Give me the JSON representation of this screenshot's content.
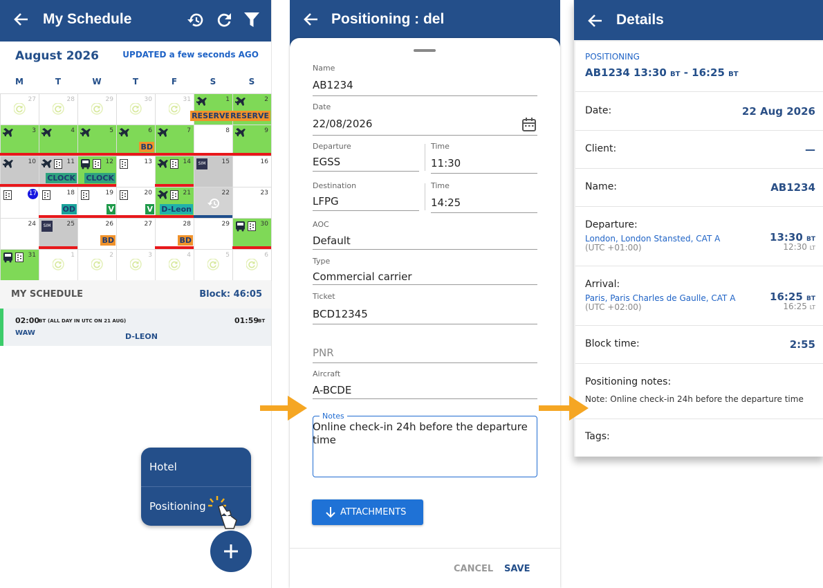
{
  "schedule": {
    "title": "My Schedule",
    "month": "August 2026",
    "updated": "UPDATED a few seconds AGO",
    "weekdays": [
      "M",
      "T",
      "W",
      "T",
      "F",
      "S",
      "S"
    ],
    "weeks": [
      [
        {
          "day": 27,
          "fg": "#bbbbbb"
        },
        {
          "day": 28,
          "fg": "#bbbbbb"
        },
        {
          "day": 29,
          "fg": "#bbbbbb"
        },
        {
          "day": 30,
          "fg": "#bbbbbb"
        },
        {
          "day": 31,
          "fg": "#bbbbbb"
        },
        {
          "day": 1,
          "bg": "#7fd957",
          "tag": {
            "text": "RESERVE",
            "color": "#f0922b",
            "fg": "#1e3a6e"
          }
        },
        {
          "day": 2,
          "bg": "#7fd957",
          "tag": {
            "text": "RESERVE",
            "color": "#f0922b",
            "fg": "#1e3a6e"
          }
        }
      ],
      [
        {
          "day": 3,
          "bg": "#7fd957",
          "bar": "#e8181b"
        },
        {
          "day": 4,
          "bg": "#7fd957",
          "bar": "#e8181b"
        },
        {
          "day": 5,
          "bg": "#7fd957",
          "bar": "#e8181b"
        },
        {
          "day": 6,
          "bg": "#7fd957",
          "bar": "#e8181b",
          "tag": {
            "text": "BD",
            "color": "#f0922b",
            "fg": "#1e3a6e"
          }
        },
        {
          "day": 7,
          "bg": "#7fd957",
          "bar": "#e8181b"
        },
        {
          "day": 8,
          "bar": "#e8181b"
        },
        {
          "day": 9,
          "bg": "#7fd957",
          "bar": "#e8181b"
        }
      ],
      [
        {
          "day": 10,
          "bg": "#c9c9c9",
          "bar": "#e8181b"
        },
        {
          "day": 11,
          "bg": "#c9c9c9",
          "bar": "#e8181b",
          "tag": {
            "text": "CLOCK",
            "color": "#2ea37f",
            "fg": "#1e3a6e"
          }
        },
        {
          "day": 12,
          "bg": "#7fd957",
          "bar": "#e8181b",
          "tag": {
            "text": "CLOCK",
            "color": "#2ea37f",
            "fg": "#1e3a6e"
          }
        },
        {
          "day": 13
        },
        {
          "day": 14,
          "bg": "#7fd957",
          "bar": "#e8181b"
        },
        {
          "day": 15,
          "bg": "#c9c9c9",
          "badge": "SIM"
        },
        {
          "day": 16
        }
      ],
      [
        {
          "day": 17,
          "dayBg": "#1515e0"
        },
        {
          "day": 18,
          "bar": "#e8181b",
          "tag": {
            "text": "OD",
            "color": "#1aa39a",
            "fg": "#1e3a6e"
          }
        },
        {
          "day": 19,
          "bar": "#e8181b",
          "tag": {
            "text": "V",
            "color": "#1f9a4a",
            "fg": "#ffffff"
          }
        },
        {
          "day": 20,
          "bar": "#e8181b",
          "tag": {
            "text": "V",
            "color": "#1f9a4a",
            "fg": "#ffffff"
          }
        },
        {
          "day": 21,
          "bg": "#7fd957",
          "bar": "#e8181b",
          "tag": {
            "text": "D-Leon",
            "color": "#20b2aa",
            "fg": "#1e3a6e"
          }
        },
        {
          "day": 22,
          "bg": "#d3d3d3",
          "bar": "#1f4e8c"
        },
        {
          "day": 23
        }
      ],
      [
        {
          "day": 24
        },
        {
          "day": 25,
          "bg": "#c9c9c9",
          "bar": "#e8181b",
          "badge": "SIM"
        },
        {
          "day": 26,
          "tag": {
            "text": "BD",
            "color": "#f0922b",
            "fg": "#1e3a6e"
          }
        },
        {
          "day": 27
        },
        {
          "day": 28,
          "bar": "#e8181b",
          "tag": {
            "text": "BD",
            "color": "#f0922b",
            "fg": "#1e3a6e"
          }
        },
        {
          "day": 29
        },
        {
          "day": 30,
          "bg": "#7fd957",
          "bar": "#e8181b"
        }
      ],
      [
        {
          "day": 31,
          "bg": "#7fd957"
        },
        {
          "day": 1,
          "fg": "#bbbbbb"
        },
        {
          "day": 2,
          "fg": "#bbbbbb"
        },
        {
          "day": 3,
          "fg": "#bbbbbb"
        },
        {
          "day": 4,
          "fg": "#bbbbbb"
        },
        {
          "day": 5,
          "fg": "#bbbbbb"
        },
        {
          "day": 6,
          "fg": "#bbbbbb"
        }
      ]
    ],
    "section": "MY SCHEDULE",
    "block": "Block: 46:05",
    "event": {
      "start": "02:00",
      "start_unit": "BT",
      "note": "(ALL DAY IN UTC ON 21 AUG)",
      "end": "01:59",
      "end_unit": "BT",
      "from": "WAW",
      "aircraft": "D-LEON"
    },
    "menu": [
      "Hotel",
      "Positioning"
    ]
  },
  "form": {
    "title": "Positioning : del",
    "fields": [
      {
        "label": "Name",
        "value": "AB1234"
      },
      {
        "label": "Date",
        "value": "22/08/2026"
      },
      {
        "label": "Departure",
        "value": "EGSS"
      },
      {
        "label": "Time",
        "value": "11:30"
      },
      {
        "label": "Destination",
        "value": "LFPG"
      },
      {
        "label": "Time",
        "value": "14:25"
      },
      {
        "label": "AOC",
        "value": "Default"
      },
      {
        "label": "Type",
        "value": "Commercial carrier"
      },
      {
        "label": "Ticket",
        "value": "BCD12345"
      },
      {
        "placeholder": "PNR"
      },
      {
        "label": "Aircraft",
        "value": "A-BCDE"
      }
    ],
    "notes": {
      "label": "Notes",
      "value": "Online check-in 24h before the departure time"
    },
    "attachments": "ATTACHMENTS",
    "cancel": "CANCEL",
    "save": "SAVE"
  },
  "details": {
    "title": "Details",
    "kind": "POSITIONING",
    "summary": [
      "AB1234 13:30",
      "BT",
      "- 16:25",
      "BT"
    ],
    "date": {
      "label": "Date:",
      "value": "22 Aug 2026"
    },
    "client": {
      "label": "Client:",
      "value": "—"
    },
    "name": {
      "label": "Name:",
      "value": "AB1234"
    },
    "departure": {
      "label": "Departure:",
      "place": "London, London Stansted, CAT A",
      "utc": "(UTC +01:00)",
      "bt": "13:30",
      "bt_unit": "BT",
      "lt": "12:30",
      "lt_unit": "LT"
    },
    "arrival": {
      "label": "Arrival:",
      "place": "Paris, Paris Charles de Gaulle, CAT A",
      "utc": "(UTC +02:00)",
      "bt": "16:25",
      "bt_unit": "BT",
      "lt": "16:25",
      "lt_unit": "LT"
    },
    "block": {
      "label": "Block time:",
      "value": "2:55"
    },
    "notes": {
      "label": "Positioning notes:",
      "value": "Note: Online check-in 24h before the departure time"
    },
    "tags": {
      "label": "Tags:"
    }
  }
}
